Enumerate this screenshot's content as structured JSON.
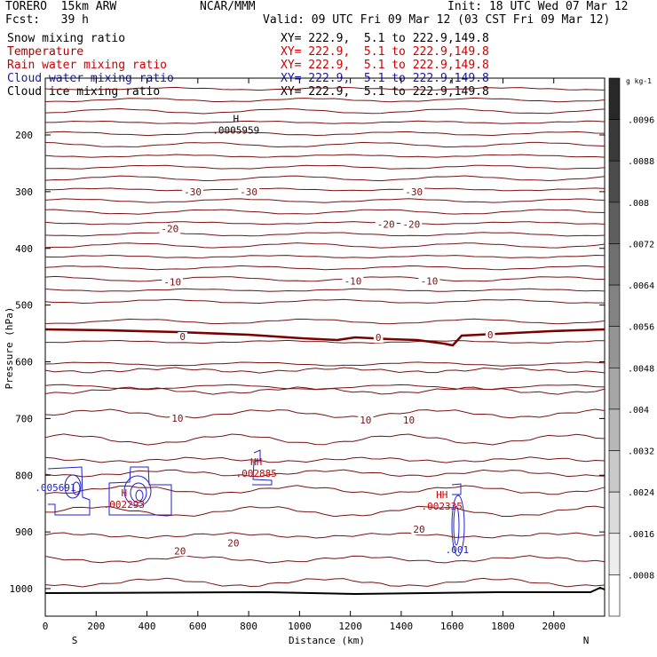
{
  "header": {
    "title_left": "TORERO  15km ARW",
    "title_center": "NCAR/MMM",
    "init": "Init: 18 UTC Wed 07 Mar 12",
    "fcst": "Fcst:   39 h",
    "valid": "Valid: 09 UTC Fri 09 Mar 12 (03 CST Fri 09 Mar 12)"
  },
  "fields": [
    {
      "name": "Snow mixing ratio",
      "xy": "",
      "color": "#000000"
    },
    {
      "name": "Temperature",
      "xy": "XY= 222.9,  5.1 to 222.9,149.8",
      "color": "#b00000"
    },
    {
      "name": "Rain water mixing ratio",
      "xy": "XY= 222.9,  5.1 to 222.9,149.8",
      "color": "#cc0000"
    },
    {
      "name": "Cloud water mixing ratio",
      "xy": "XY= 222.9,  5.1 to 222.9,149.8",
      "color": "#1a1aaa"
    },
    {
      "name": "Cloud ice mixing ratio",
      "xy": "XY= 222.9,  5.1 to 222.9,149.8",
      "color": "#000000"
    }
  ],
  "snow_xy": "XY= 222.9,  5.1 to 222.9,149.8",
  "chart_data": {
    "type": "contour",
    "xlabel": "Distance (km)",
    "ylabel": "Pressure (hPa)",
    "x_ticks": [
      0,
      200,
      400,
      600,
      800,
      1000,
      1200,
      1400,
      1600,
      1800,
      2000
    ],
    "y_ticks": [
      200,
      300,
      400,
      500,
      600,
      700,
      800,
      900,
      1000
    ],
    "xlim": [
      0,
      2200
    ],
    "ylim_hpa": [
      100,
      1050
    ],
    "x_end_labels": {
      "left": "S",
      "right": "N"
    },
    "temperature_labels": [
      {
        "text": "-30",
        "x": 580,
        "p": 305
      },
      {
        "text": "-30",
        "x": 800,
        "p": 305
      },
      {
        "text": "-30",
        "x": 1450,
        "p": 305
      },
      {
        "text": "-20",
        "x": 490,
        "p": 370
      },
      {
        "text": "-20",
        "x": 1340,
        "p": 362
      },
      {
        "text": "-20",
        "x": 1440,
        "p": 362
      },
      {
        "text": "-10",
        "x": 500,
        "p": 464
      },
      {
        "text": "-10",
        "x": 1210,
        "p": 462
      },
      {
        "text": "-10",
        "x": 1510,
        "p": 462
      },
      {
        "text": "0",
        "x": 540,
        "p": 560
      },
      {
        "text": "0",
        "x": 1310,
        "p": 562
      },
      {
        "text": "0",
        "x": 1750,
        "p": 557
      },
      {
        "text": "10",
        "x": 520,
        "p": 704
      },
      {
        "text": "10",
        "x": 1260,
        "p": 707
      },
      {
        "text": "10",
        "x": 1430,
        "p": 707
      },
      {
        "text": "20",
        "x": 530,
        "p": 938
      },
      {
        "text": "20",
        "x": 740,
        "p": 924
      },
      {
        "text": "20",
        "x": 1470,
        "p": 900
      }
    ],
    "max_labels": [
      {
        "marker": "H",
        "value": ".0005959",
        "x": 750,
        "p": 185,
        "color": "#000000"
      },
      {
        "marker": "HH",
        "value": ".002885",
        "x": 830,
        "p": 790,
        "color": "#cc0000"
      },
      {
        "marker": "H",
        "value": ".002293",
        "x": 310,
        "p": 845,
        "color": "#cc0000"
      },
      {
        "marker": "HH",
        "value": ".002335",
        "x": 1560,
        "p": 848,
        "color": "#cc0000"
      }
    ],
    "cloud_water_labels": [
      {
        "text": ".005691",
        "x": 40,
        "p": 828
      },
      {
        "text": ".001",
        "x": 1620,
        "p": 937
      }
    ],
    "colorbar": {
      "unit": "g kg-1",
      "levels": [
        ".0096",
        ".0088",
        ".008",
        ".0072",
        ".0064",
        ".0056",
        ".0048",
        ".004",
        ".0032",
        ".0024",
        ".0016",
        ".0008"
      ]
    }
  },
  "colors": {
    "temperature": "#7a1010",
    "freezing": "#7a0000",
    "cloud_water": "#2020cc",
    "rain": "#cc0000",
    "ground": "#000000"
  }
}
